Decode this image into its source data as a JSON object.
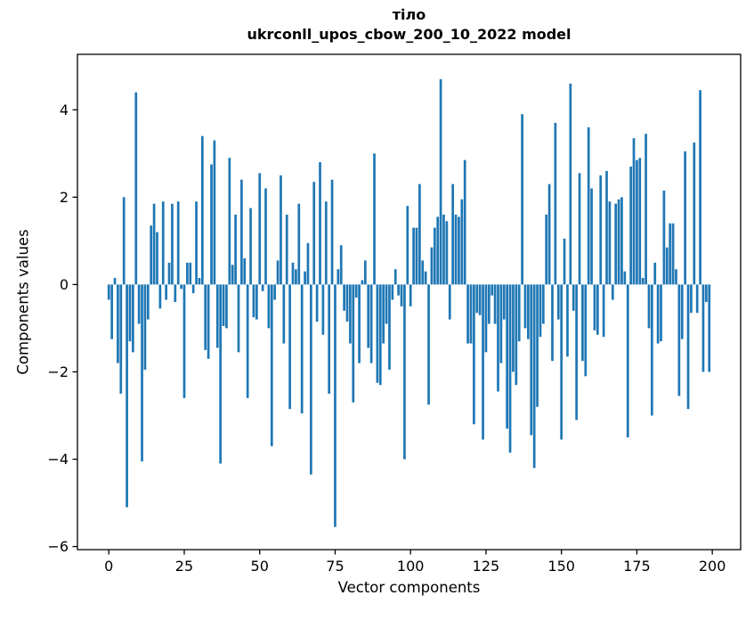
{
  "chart_data": {
    "type": "bar",
    "title_line1": "тіло",
    "title_line2": "ukrconll_upos_cbow_200_10_2022 model",
    "xlabel": "Vector components",
    "ylabel": "Components values",
    "bar_color": "#1f77b4",
    "axis_color": "#000000",
    "background_color": "#ffffff",
    "x_start": 0,
    "bar_width_units": 0.8,
    "xlim": [
      -10.4,
      209.4
    ],
    "ylim": [
      -6.07,
      5.27
    ],
    "x_ticks": [
      0,
      25,
      50,
      75,
      100,
      125,
      150,
      175,
      200
    ],
    "y_ticks": [
      -6,
      -4,
      -2,
      0,
      2,
      4
    ],
    "grid": false,
    "legend": "none",
    "values": [
      -0.35,
      -1.25,
      0.15,
      -1.8,
      -2.5,
      2.0,
      -5.1,
      -1.3,
      -1.55,
      4.4,
      -0.9,
      -4.05,
      -1.95,
      -0.8,
      1.35,
      1.85,
      1.2,
      -0.55,
      1.9,
      -0.35,
      0.5,
      1.85,
      -0.4,
      1.9,
      -0.1,
      -2.6,
      0.5,
      0.5,
      -0.2,
      1.9,
      0.15,
      3.4,
      -1.5,
      -1.7,
      2.75,
      3.3,
      -1.45,
      -4.1,
      -0.95,
      -1.0,
      2.9,
      0.45,
      1.6,
      -1.55,
      2.4,
      0.6,
      -2.6,
      1.75,
      -0.75,
      -0.8,
      2.55,
      -0.15,
      2.2,
      -1.0,
      -3.7,
      -0.35,
      0.55,
      2.5,
      -1.35,
      1.6,
      -2.85,
      0.5,
      0.35,
      1.85,
      -2.95,
      0.3,
      0.95,
      -4.35,
      2.35,
      -0.85,
      2.8,
      -1.15,
      1.9,
      -2.5,
      2.4,
      -5.55,
      0.35,
      0.9,
      -0.6,
      -0.85,
      -1.35,
      -2.7,
      -0.3,
      -1.8,
      0.1,
      0.55,
      -1.45,
      -1.8,
      3.0,
      -2.25,
      -2.3,
      -1.35,
      -0.9,
      -1.95,
      -0.35,
      0.35,
      -0.25,
      -0.5,
      -4.0,
      1.8,
      -0.5,
      1.3,
      1.3,
      2.3,
      0.55,
      0.3,
      -2.75,
      0.85,
      1.3,
      1.55,
      4.7,
      1.6,
      1.45,
      -0.8,
      2.3,
      1.6,
      1.55,
      1.95,
      2.85,
      -1.35,
      -1.35,
      -3.2,
      -0.65,
      -0.7,
      -3.55,
      -1.55,
      -0.9,
      -0.25,
      -0.9,
      -2.45,
      -1.8,
      -0.8,
      -3.3,
      -3.85,
      -2.0,
      -2.3,
      -1.3,
      3.9,
      -1.0,
      -1.25,
      -3.45,
      -4.2,
      -2.8,
      -1.2,
      -0.9,
      1.6,
      2.3,
      -1.75,
      3.7,
      -0.8,
      -3.55,
      1.05,
      -1.65,
      4.6,
      -0.6,
      -3.1,
      2.55,
      -1.75,
      -2.1,
      3.6,
      2.2,
      -1.05,
      -1.15,
      2.5,
      -1.2,
      2.6,
      1.9,
      -0.35,
      1.85,
      1.95,
      2.0,
      0.3,
      -3.5,
      2.7,
      3.35,
      2.85,
      2.9,
      0.15,
      3.45,
      -1.0,
      -3.0,
      0.5,
      -1.35,
      -1.3,
      2.15,
      0.85,
      1.4,
      1.4,
      0.35,
      -2.55,
      -1.25,
      3.05,
      -2.85,
      -0.65,
      3.25,
      -0.65,
      4.45,
      -2.0,
      -0.4,
      -2.0
    ]
  }
}
